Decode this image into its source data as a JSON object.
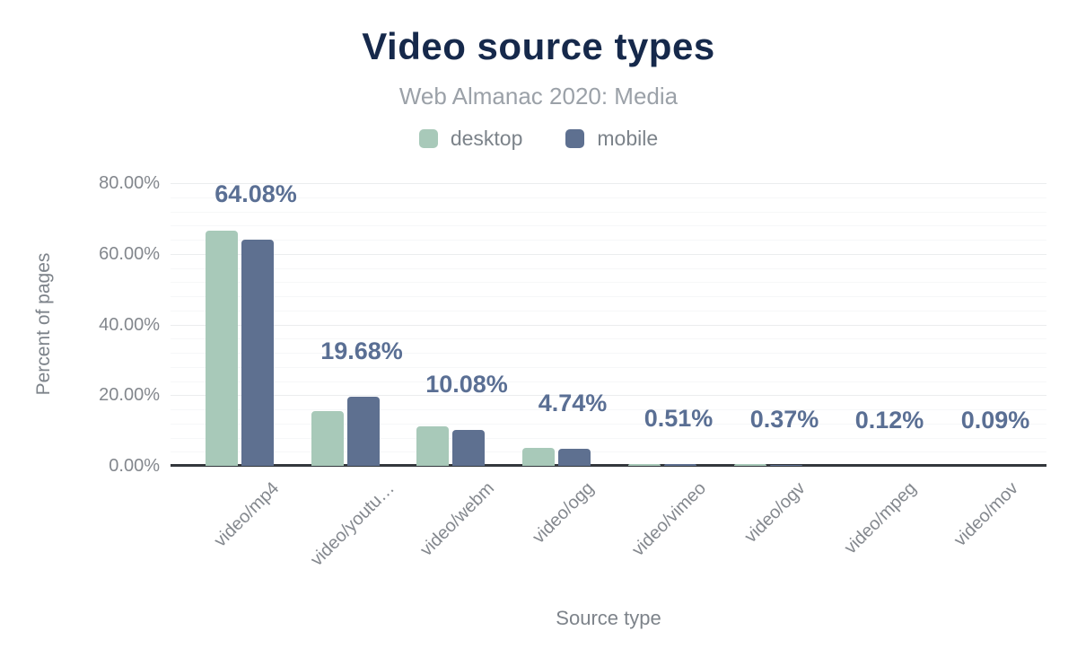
{
  "title": "Video source types",
  "subtitle": "Web Almanac 2020: Media",
  "legend": [
    {
      "label": "desktop",
      "color": "#a8c9b9"
    },
    {
      "label": "mobile",
      "color": "#5e7090"
    }
  ],
  "y_axis": {
    "label": "Percent of pages",
    "ticks": [
      "80.00%",
      "60.00%",
      "40.00%",
      "20.00%",
      "0.00%"
    ]
  },
  "x_axis": {
    "label": "Source type"
  },
  "chart_data": {
    "type": "bar",
    "title": "Video source types",
    "subtitle": "Web Almanac 2020: Media",
    "xlabel": "Source type",
    "ylabel": "Percent of pages",
    "ylim": [
      0,
      80
    ],
    "grid": true,
    "legend_position": "top",
    "categories": [
      "video/mp4",
      "video/youtu…",
      "video/webm",
      "video/ogg",
      "video/vimeo",
      "video/ogv",
      "video/mpeg",
      "video/mov"
    ],
    "series": [
      {
        "name": "desktop",
        "color": "#a8c9b9",
        "values": [
          66.5,
          15.5,
          11.2,
          5.1,
          0.52,
          0.4,
          0.12,
          0.09
        ]
      },
      {
        "name": "mobile",
        "color": "#5e7090",
        "values": [
          64.08,
          19.68,
          10.08,
          4.74,
          0.51,
          0.37,
          0.12,
          0.09
        ]
      }
    ],
    "bar_labels": [
      "64.08%",
      "19.68%",
      "10.08%",
      "4.74%",
      "0.51%",
      "0.37%",
      "0.12%",
      "0.09%"
    ]
  }
}
